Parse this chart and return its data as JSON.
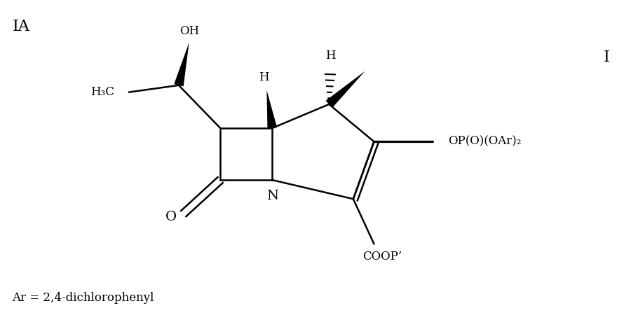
{
  "title_label": "IA",
  "right_label": "I",
  "bottom_label": "Ar = 2,4-dichlorophenyl",
  "bg_color": "#ffffff",
  "line_color": "#000000",
  "font_size": 14,
  "small_font_size": 12,
  "lw": 1.8
}
